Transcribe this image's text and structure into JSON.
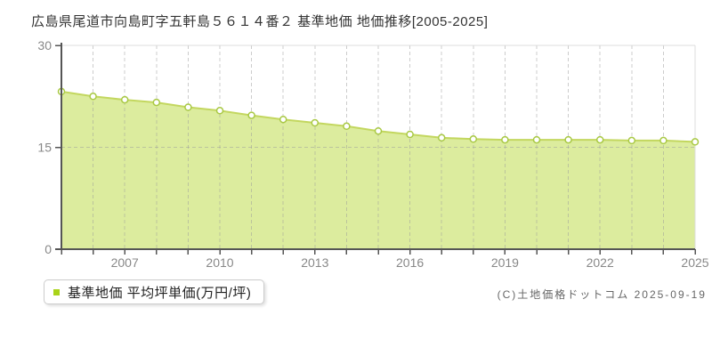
{
  "title": "広島県尾道市向島町字五軒島５６１４番２ 基準地価 地価推移[2005-2025]",
  "legend": {
    "label": "基準地価 平均坪単価(万円/坪)"
  },
  "copyright": "(C)土地価格ドットコム 2025-09-19",
  "chart_data": {
    "type": "area",
    "title": "広島県尾道市向島町字五軒島５６１４番２ 基準地価 地価推移[2005-2025]",
    "series_name": "基準地価 平均坪単価(万円/坪)",
    "unit": "万円/坪",
    "x": [
      2005,
      2006,
      2007,
      2008,
      2009,
      2010,
      2011,
      2012,
      2013,
      2014,
      2015,
      2016,
      2017,
      2018,
      2019,
      2020,
      2021,
      2022,
      2023,
      2024,
      2025
    ],
    "values": [
      23.2,
      22.5,
      22.0,
      21.6,
      20.9,
      20.4,
      19.7,
      19.1,
      18.6,
      18.1,
      17.4,
      16.9,
      16.4,
      16.2,
      16.1,
      16.1,
      16.1,
      16.1,
      16.0,
      16.0,
      15.8
    ],
    "ylim": [
      0,
      30
    ],
    "y_ticks": [
      0,
      15,
      30
    ],
    "x_tick_years": [
      2007,
      2010,
      2013,
      2016,
      2019,
      2022,
      2025
    ],
    "grid": true,
    "legend_position": "bottom-left",
    "colors": {
      "fill": "#dcec9e",
      "line": "#c3d75f",
      "marker_fill": "#ffffff",
      "marker_stroke": "#a9c945",
      "legend_marker": "#a9d319",
      "grid": "#999999",
      "border": "#dddddd",
      "axis": "#555555",
      "tick_label": "#888888"
    }
  }
}
